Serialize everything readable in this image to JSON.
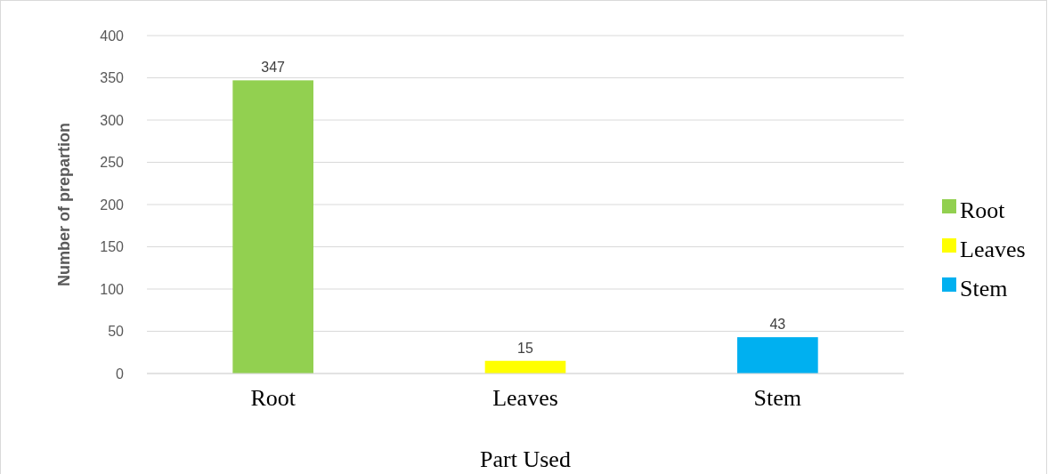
{
  "chart_data": {
    "type": "bar",
    "xlabel": "Part Used",
    "ylabel": "Number of prepartion",
    "categories": [
      "Root",
      "Leaves",
      "Stem"
    ],
    "series": [
      {
        "name": "Root",
        "color": "#92d050",
        "values": [
          347,
          null,
          null
        ]
      },
      {
        "name": "Leaves",
        "color": "#ffff00",
        "values": [
          null,
          15,
          null
        ]
      },
      {
        "name": "Stem",
        "color": "#00b0f0",
        "values": [
          null,
          null,
          43
        ]
      }
    ],
    "ylim": [
      0,
      400
    ],
    "yticks": [
      0,
      50,
      100,
      150,
      200,
      250,
      300,
      350,
      400
    ],
    "grid": "y",
    "legend": "right",
    "data_labels": true
  }
}
